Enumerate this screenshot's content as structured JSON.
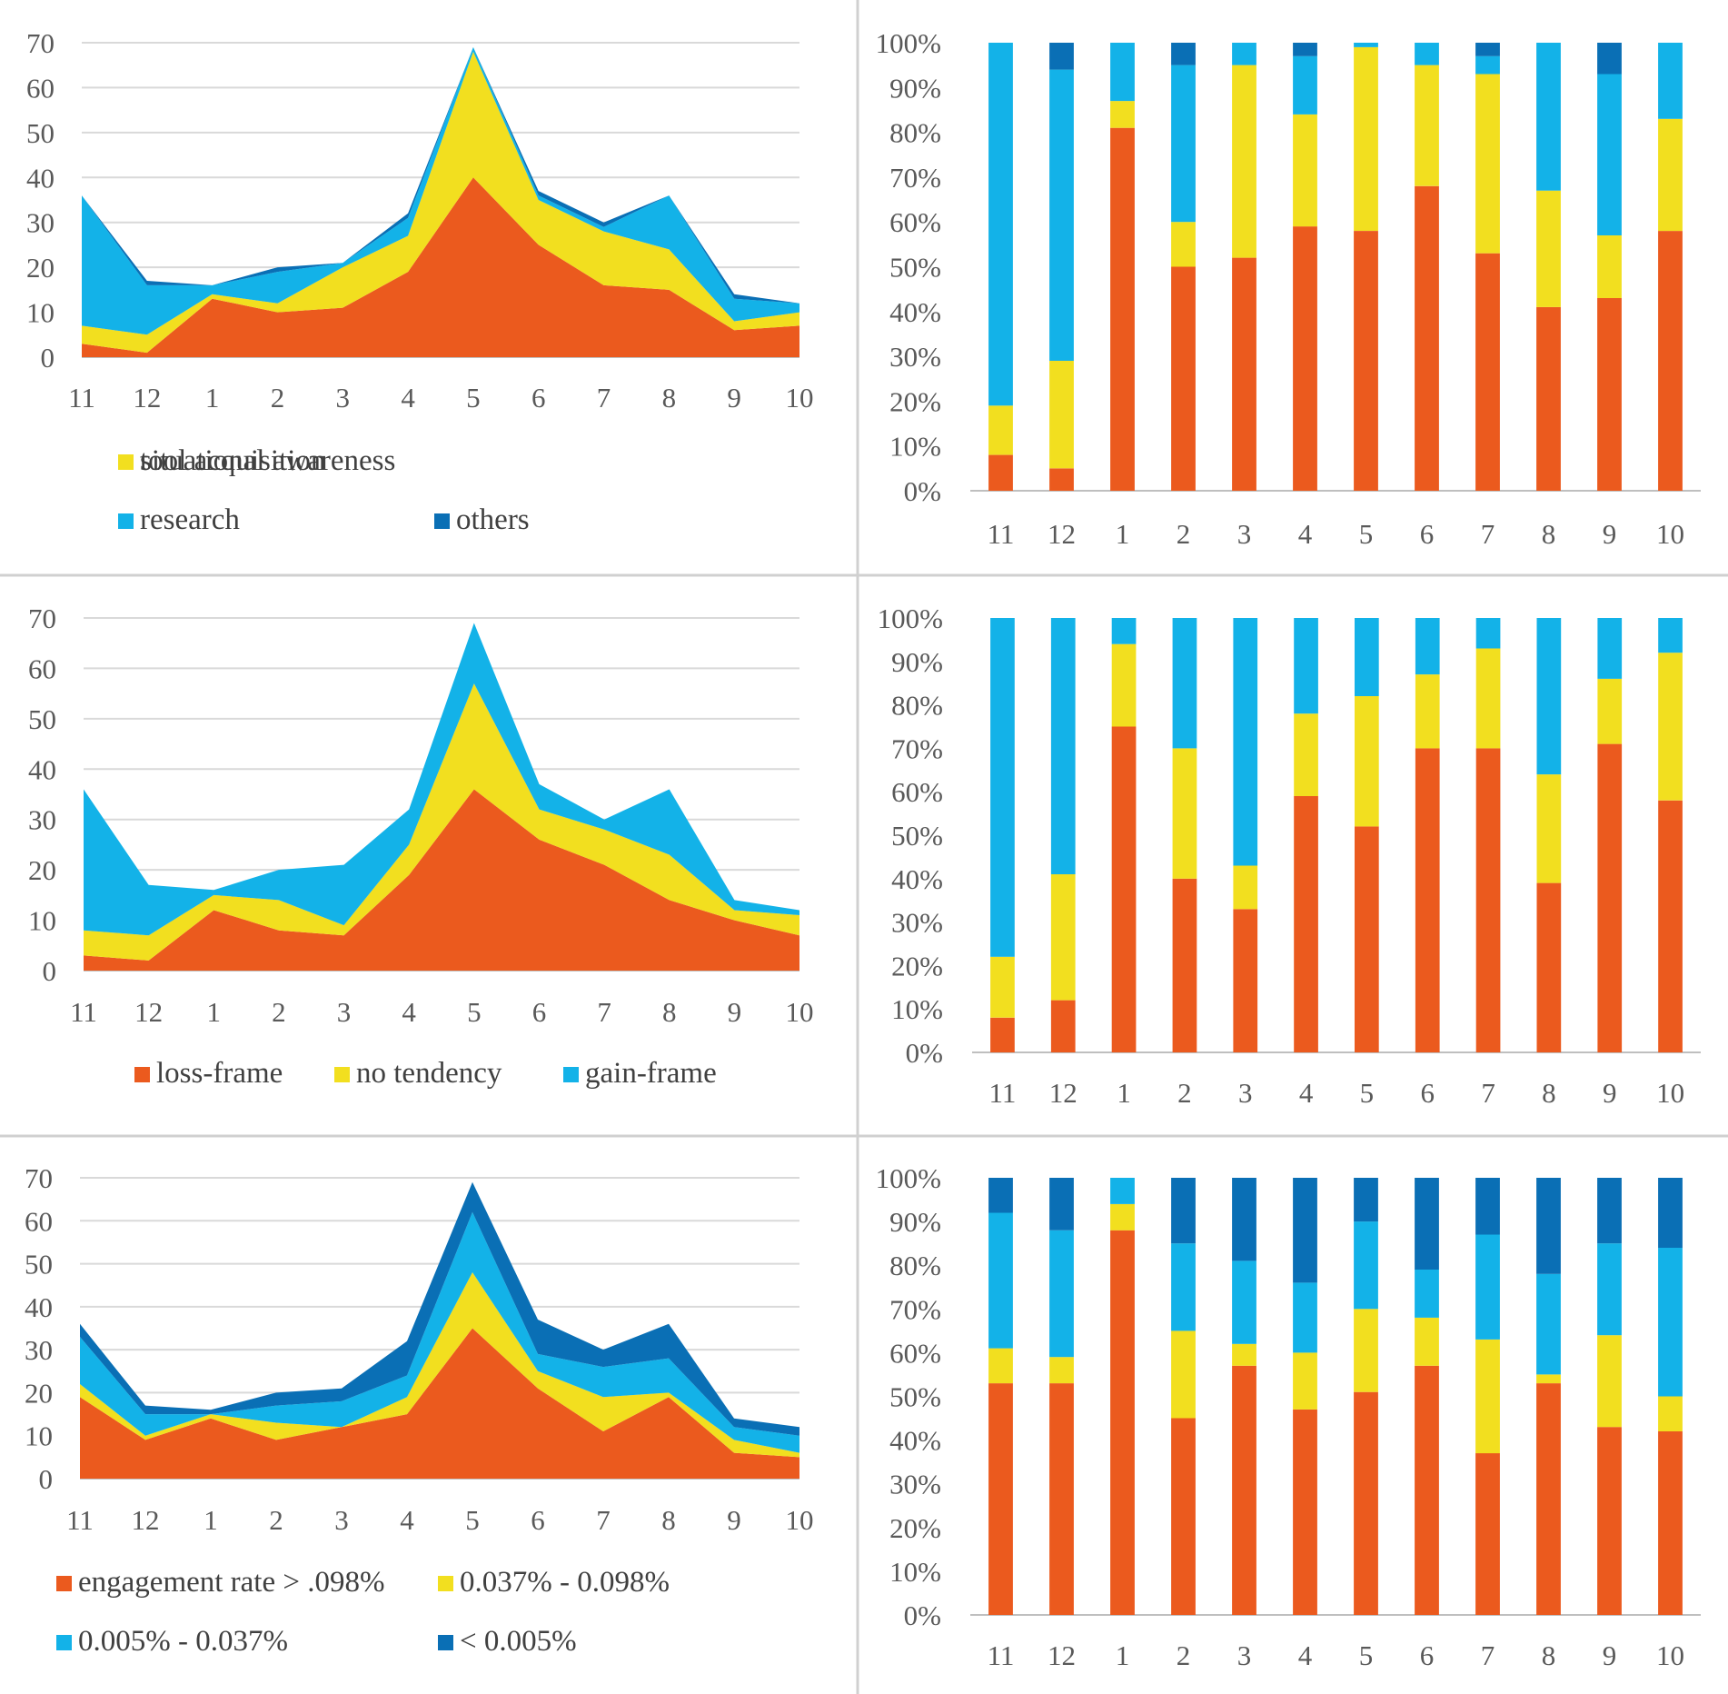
{
  "colors": {
    "orange": "#EB5A1E",
    "yellow": "#F2DF1F",
    "cyan": "#13B2E8",
    "darkblue": "#0A6FB5",
    "grid": "#D9D9D9",
    "axis": "#BFBFBF",
    "divider": "#D0D0D0"
  },
  "chart_data": [
    {
      "id": "topic-area",
      "type": "area",
      "stacked": true,
      "categories": [
        "11",
        "12",
        "1",
        "2",
        "3",
        "4",
        "5",
        "6",
        "7",
        "8",
        "9",
        "10"
      ],
      "ylim": [
        0,
        70
      ],
      "yticks": [
        "0",
        "10",
        "20",
        "30",
        "40",
        "50",
        "60",
        "70"
      ],
      "grid": true,
      "legend_position": "bottom",
      "series": [
        {
          "name": "situational awareness",
          "color": "orange",
          "values": [
            3,
            1,
            13,
            10,
            11,
            19,
            40,
            25,
            16,
            15,
            6,
            7
          ]
        },
        {
          "name": "tool acquisition",
          "color": "yellow",
          "values": [
            4,
            4,
            1,
            2,
            9,
            8,
            28,
            10,
            12,
            9,
            2,
            3
          ]
        },
        {
          "name": "research",
          "color": "cyan",
          "values": [
            29,
            11,
            2,
            7,
            1,
            4,
            1,
            1,
            1,
            12,
            5,
            2
          ]
        },
        {
          "name": "others",
          "color": "darkblue",
          "values": [
            0,
            1,
            0,
            1,
            0,
            1,
            0,
            1,
            1,
            0,
            1,
            0
          ]
        }
      ]
    },
    {
      "id": "topic-percent",
      "type": "bar",
      "stacked_percent": true,
      "categories": [
        "11",
        "12",
        "1",
        "2",
        "3",
        "4",
        "5",
        "6",
        "7",
        "8",
        "9",
        "10"
      ],
      "ylim": [
        0,
        100
      ],
      "yticks": [
        "0%",
        "10%",
        "20%",
        "30%",
        "40%",
        "50%",
        "60%",
        "70%",
        "80%",
        "90%",
        "100%"
      ],
      "series": [
        {
          "name": "situational awareness",
          "color": "orange",
          "values": [
            8,
            5,
            81,
            50,
            52,
            59,
            58,
            68,
            53,
            41,
            43,
            58
          ]
        },
        {
          "name": "tool acquisition",
          "color": "yellow",
          "values": [
            11,
            24,
            6,
            10,
            43,
            25,
            41,
            27,
            40,
            26,
            14,
            25
          ]
        },
        {
          "name": "research",
          "color": "cyan",
          "values": [
            81,
            65,
            13,
            35,
            5,
            13,
            1,
            5,
            4,
            33,
            36,
            17
          ]
        },
        {
          "name": "others",
          "color": "darkblue",
          "values": [
            0,
            6,
            0,
            5,
            0,
            3,
            0,
            0,
            3,
            0,
            7,
            0
          ]
        }
      ]
    },
    {
      "id": "frame-area",
      "type": "area",
      "stacked": true,
      "categories": [
        "11",
        "12",
        "1",
        "2",
        "3",
        "4",
        "5",
        "6",
        "7",
        "8",
        "9",
        "10"
      ],
      "ylim": [
        0,
        70
      ],
      "yticks": [
        "0",
        "10",
        "20",
        "30",
        "40",
        "50",
        "60",
        "70"
      ],
      "grid": true,
      "legend_position": "bottom",
      "series": [
        {
          "name": "loss-frame",
          "color": "orange",
          "values": [
            3,
            2,
            12,
            8,
            7,
            19,
            36,
            26,
            21,
            14,
            10,
            7
          ]
        },
        {
          "name": "no tendency",
          "color": "yellow",
          "values": [
            5,
            5,
            3,
            6,
            2,
            6,
            21,
            6,
            7,
            9,
            2,
            4
          ]
        },
        {
          "name": "gain-frame",
          "color": "cyan",
          "values": [
            28,
            10,
            1,
            6,
            12,
            7,
            12,
            5,
            2,
            13,
            2,
            1
          ]
        }
      ]
    },
    {
      "id": "frame-percent",
      "type": "bar",
      "stacked_percent": true,
      "categories": [
        "11",
        "12",
        "1",
        "2",
        "3",
        "4",
        "5",
        "6",
        "7",
        "8",
        "9",
        "10"
      ],
      "ylim": [
        0,
        100
      ],
      "yticks": [
        "0%",
        "10%",
        "20%",
        "30%",
        "40%",
        "50%",
        "60%",
        "70%",
        "80%",
        "90%",
        "100%"
      ],
      "series": [
        {
          "name": "loss-frame",
          "color": "orange",
          "values": [
            8,
            12,
            75,
            40,
            33,
            59,
            52,
            70,
            70,
            39,
            71,
            58
          ]
        },
        {
          "name": "no tendency",
          "color": "yellow",
          "values": [
            14,
            29,
            19,
            30,
            10,
            19,
            30,
            17,
            23,
            25,
            15,
            34
          ]
        },
        {
          "name": "gain-frame",
          "color": "cyan",
          "values": [
            78,
            59,
            6,
            30,
            57,
            22,
            18,
            13,
            7,
            36,
            14,
            8
          ]
        }
      ]
    },
    {
      "id": "engagement-area",
      "type": "area",
      "stacked": true,
      "categories": [
        "11",
        "12",
        "1",
        "2",
        "3",
        "4",
        "5",
        "6",
        "7",
        "8",
        "9",
        "10"
      ],
      "ylim": [
        0,
        70
      ],
      "yticks": [
        "0",
        "10",
        "20",
        "30",
        "40",
        "50",
        "60",
        "70"
      ],
      "grid": true,
      "legend_position": "bottom",
      "series": [
        {
          "name": "engagement rate > .098%",
          "color": "orange",
          "values": [
            19,
            9,
            14,
            9,
            12,
            15,
            35,
            21,
            11,
            19,
            6,
            5
          ]
        },
        {
          "name": "0.037% - 0.098%",
          "color": "yellow",
          "values": [
            3,
            1,
            1,
            4,
            0,
            4,
            13,
            4,
            8,
            1,
            3,
            1
          ]
        },
        {
          "name": "0.005% - 0.037%",
          "color": "cyan",
          "values": [
            11,
            5,
            0,
            4,
            6,
            5,
            14,
            4,
            7,
            8,
            3,
            4
          ]
        },
        {
          "name": "< 0.005%",
          "color": "darkblue",
          "values": [
            3,
            2,
            1,
            3,
            3,
            8,
            7,
            8,
            4,
            8,
            2,
            2
          ]
        }
      ]
    },
    {
      "id": "engagement-percent",
      "type": "bar",
      "stacked_percent": true,
      "categories": [
        "11",
        "12",
        "1",
        "2",
        "3",
        "4",
        "5",
        "6",
        "7",
        "8",
        "9",
        "10"
      ],
      "ylim": [
        0,
        100
      ],
      "yticks": [
        "0%",
        "10%",
        "20%",
        "30%",
        "40%",
        "50%",
        "60%",
        "70%",
        "80%",
        "90%",
        "100%"
      ],
      "series": [
        {
          "name": "engagement rate > .098%",
          "color": "orange",
          "values": [
            53,
            53,
            88,
            45,
            57,
            47,
            51,
            57,
            37,
            53,
            43,
            42
          ]
        },
        {
          "name": "0.037% - 0.098%",
          "color": "yellow",
          "values": [
            8,
            6,
            6,
            20,
            5,
            13,
            19,
            11,
            26,
            2,
            21,
            8
          ]
        },
        {
          "name": "0.005% - 0.037%",
          "color": "cyan",
          "values": [
            31,
            29,
            6,
            20,
            19,
            16,
            20,
            11,
            24,
            23,
            21,
            34
          ]
        },
        {
          "name": "< 0.005%",
          "color": "darkblue",
          "values": [
            8,
            12,
            0,
            15,
            19,
            24,
            10,
            21,
            13,
            22,
            15,
            16
          ]
        }
      ]
    }
  ]
}
